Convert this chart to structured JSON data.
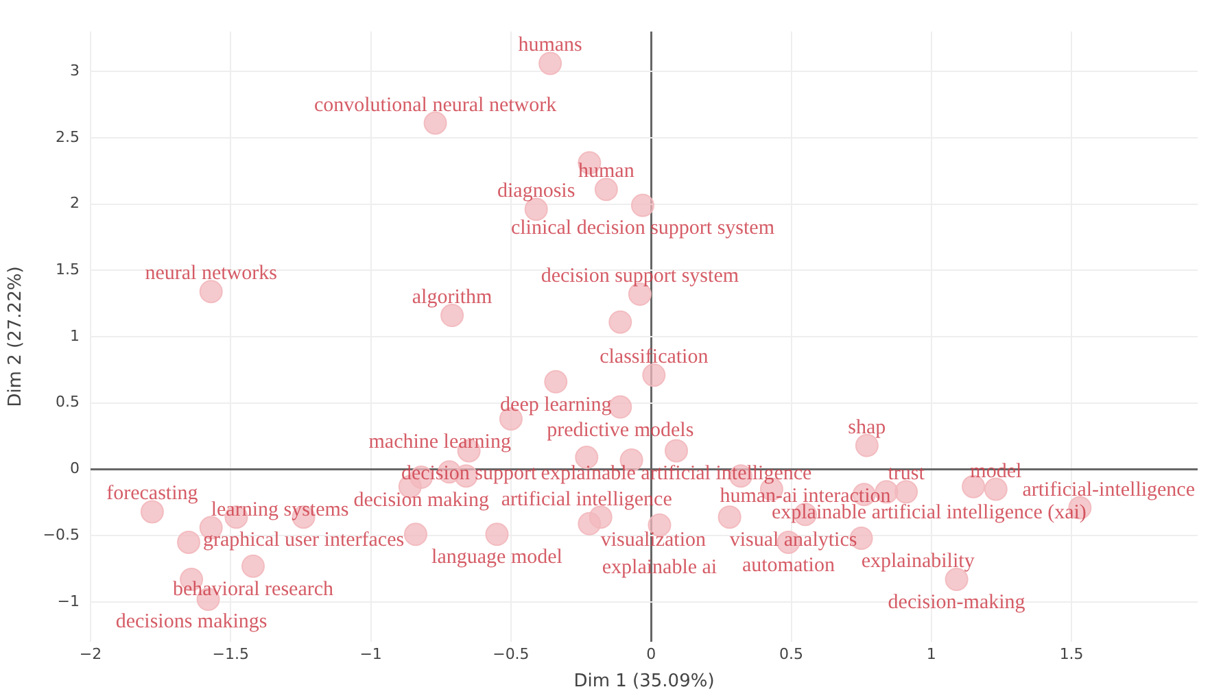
{
  "chart_data": {
    "type": "scatter",
    "xlabel": "Dim 1 (35.09%)",
    "ylabel": "Dim 2 (27.22%)",
    "xlim": [
      -2,
      1.95
    ],
    "ylim": [
      -1.3,
      3.3
    ],
    "xticks": [
      -2,
      -1.5,
      -1,
      -0.5,
      0,
      0.5,
      1,
      1.5
    ],
    "yticks": [
      -1,
      -0.5,
      0,
      0.5,
      1,
      1.5,
      2,
      2.5,
      3
    ],
    "grid": true,
    "marker": "circle",
    "series": [
      {
        "color": "#f2b8bd",
        "x": [
          -0.36,
          -0.77,
          -0.22,
          -0.16,
          -0.41,
          -0.03,
          -1.57,
          -0.71,
          -0.04,
          -0.11,
          0.01,
          -0.34,
          -0.11,
          -0.5,
          -0.65,
          -0.23,
          -0.07,
          0.09,
          0.77,
          -0.82,
          -0.72,
          -0.66,
          -0.86,
          0.43,
          0.32,
          0.91,
          0.76,
          0.84,
          1.15,
          1.23,
          1.53,
          -1.78,
          -1.57,
          -1.48,
          -1.24,
          -1.65,
          -1.64,
          -1.58,
          -1.42,
          -0.84,
          -0.55,
          -0.22,
          -0.18,
          0.03,
          0.28,
          0.55,
          0.49,
          0.75,
          1.09
        ],
        "values": [
          3.06,
          2.61,
          2.31,
          2.11,
          1.96,
          1.99,
          1.34,
          1.16,
          1.32,
          1.11,
          0.71,
          0.66,
          0.47,
          0.38,
          0.14,
          0.09,
          0.07,
          0.14,
          0.18,
          -0.06,
          -0.02,
          -0.05,
          -0.13,
          -0.15,
          -0.05,
          -0.17,
          -0.19,
          -0.17,
          -0.13,
          -0.15,
          -0.29,
          -0.32,
          -0.44,
          -0.36,
          -0.36,
          -0.55,
          -0.83,
          -0.98,
          -0.73,
          -0.49,
          -0.49,
          -0.41,
          -0.36,
          -0.42,
          -0.36,
          -0.34,
          -0.55,
          -0.52,
          -0.83
        ]
      }
    ],
    "annotations": [
      {
        "text": "humans",
        "x": -0.36,
        "y": 3.06
      },
      {
        "text": "convolutional neural network",
        "x": -0.77,
        "y": 2.61
      },
      {
        "text": "human",
        "x": -0.16,
        "y": 2.11
      },
      {
        "text": "diagnosis",
        "x": -0.41,
        "y": 1.96
      },
      {
        "text": "clinical decision support system",
        "x": -0.03,
        "y": 1.99
      },
      {
        "text": "neural networks",
        "x": -1.57,
        "y": 1.34
      },
      {
        "text": "algorithm",
        "x": -0.71,
        "y": 1.16
      },
      {
        "text": "decision support system",
        "x": -0.04,
        "y": 1.32
      },
      {
        "text": "classification",
        "x": 0.01,
        "y": 0.71
      },
      {
        "text": "deep learning",
        "x": -0.34,
        "y": 0.66
      },
      {
        "text": "predictive models",
        "x": -0.11,
        "y": 0.47
      },
      {
        "text": "machine learning",
        "x": -0.5,
        "y": 0.38
      },
      {
        "text": "decision support",
        "x": -0.65,
        "y": 0.14
      },
      {
        "text": "explainable artificial intelligence",
        "x": 0.09,
        "y": 0.14
      },
      {
        "text": "artificial intelligence",
        "x": -0.23,
        "y": 0.09
      },
      {
        "text": "shap",
        "x": 0.77,
        "y": 0.18
      },
      {
        "text": "decision making",
        "x": -0.82,
        "y": -0.06
      },
      {
        "text": "explainable artificial intelligence (xai)",
        "x": 0.43,
        "y": -0.15
      },
      {
        "text": "trust",
        "x": 0.91,
        "y": -0.17
      },
      {
        "text": "model",
        "x": 1.23,
        "y": -0.15
      },
      {
        "text": "artificial-intelligence",
        "x": 1.53,
        "y": -0.29
      },
      {
        "text": "forecasting",
        "x": -1.78,
        "y": -0.32
      },
      {
        "text": "graphical user interfaces",
        "x": -1.24,
        "y": -0.36
      },
      {
        "text": "learning systems",
        "x": -1.57,
        "y": -0.44
      },
      {
        "text": "behavioral research",
        "x": -1.42,
        "y": -0.73
      },
      {
        "text": "decisions makings",
        "x": -1.64,
        "y": -0.83
      },
      {
        "text": "language model",
        "x": -0.55,
        "y": -0.49
      },
      {
        "text": "visualization",
        "x": -0.18,
        "y": -0.36
      },
      {
        "text": "explainable ai",
        "x": 0.03,
        "y": -0.42
      },
      {
        "text": "visual analytics",
        "x": 0.28,
        "y": -0.36
      },
      {
        "text": "human-ai interaction",
        "x": 0.55,
        "y": -0.34
      },
      {
        "text": "automation",
        "x": 0.49,
        "y": -0.55
      },
      {
        "text": "explainability",
        "x": 0.75,
        "y": -0.52
      },
      {
        "text": "decision-making",
        "x": 1.09,
        "y": -0.83
      }
    ]
  }
}
